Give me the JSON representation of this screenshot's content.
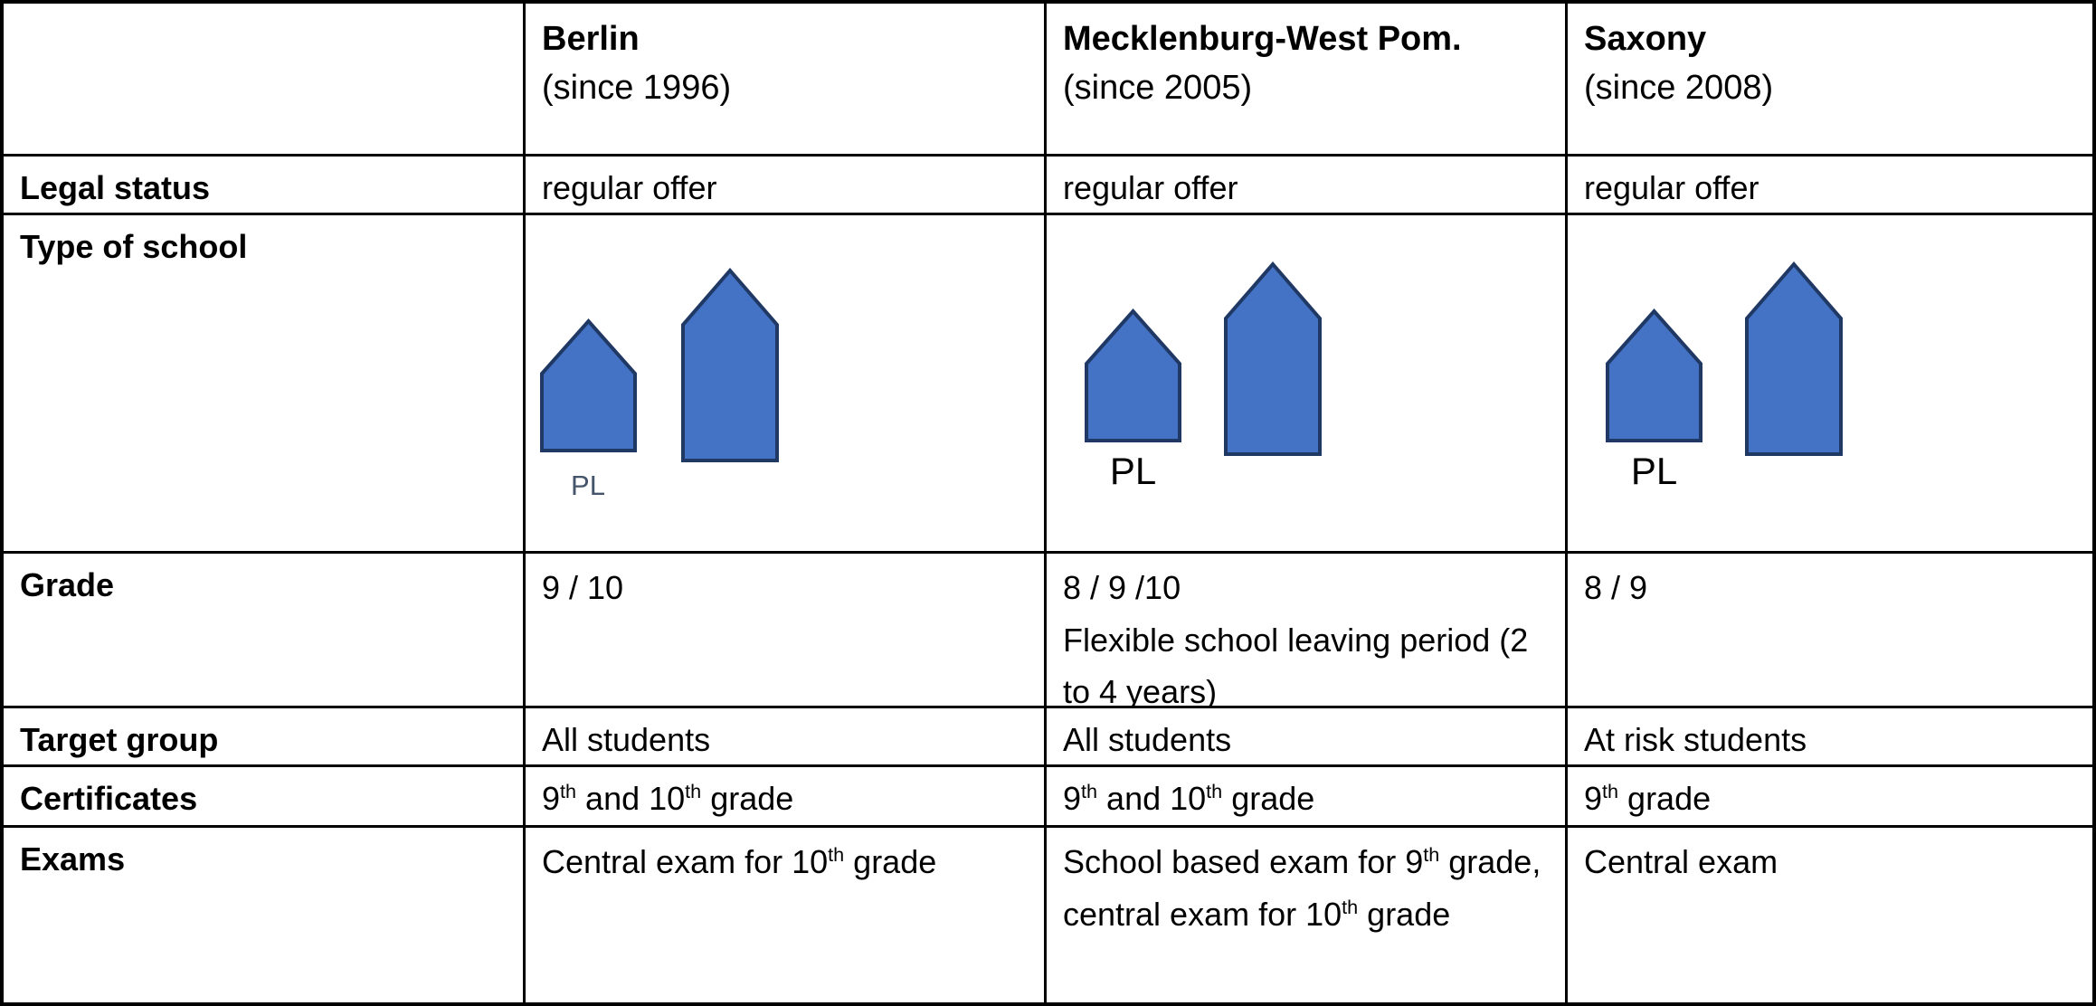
{
  "header": {
    "corner_label": "",
    "columns": [
      {
        "name": "Berlin",
        "since": "(since 1996)"
      },
      {
        "name": "Mecklenburg-West Pom.",
        "since": "(since 2005)"
      },
      {
        "name": "Saxony",
        "since": "(since 2008)"
      }
    ]
  },
  "rows": {
    "legal_status": {
      "label": "Legal status",
      "cells": [
        "regular offer",
        "regular offer",
        "regular offer"
      ]
    },
    "type_of_school": {
      "label": "Type of school",
      "pl_label": "PL"
    },
    "grade": {
      "label": "Grade",
      "cells": [
        "9 / 10",
        "8 / 9 /10\nFlexible school leaving period (2 to 4 years)",
        "8 / 9"
      ]
    },
    "target_group": {
      "label": "Target group",
      "cells": [
        "All students",
        "All students",
        "At risk students"
      ]
    },
    "certificates": {
      "label": "Certificates",
      "cells": [
        "9^th^ and 10^th^ grade",
        "9^th^ and 10^th^ grade",
        "9^th^ grade"
      ]
    },
    "exams": {
      "label": "Exams",
      "cells": [
        "Central exam for 10^th^ grade",
        "School based exam for 9^th^ grade, central exam for 10^th^ grade",
        "Central exam"
      ]
    }
  },
  "colors": {
    "house_fill": "#4472C4",
    "house_stroke": "#1F3864",
    "pl_muted": "#44546A",
    "border": "#000000",
    "background": "#FFFFFF"
  }
}
